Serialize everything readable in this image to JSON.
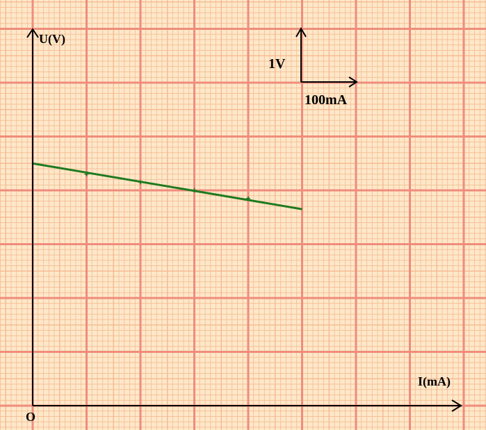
{
  "colors": {
    "paper": "#fde8c9",
    "grid_fine": "#f5b58c",
    "grid_major": "#f08c7c",
    "axis": "#000000",
    "line": "#1f7a1f"
  },
  "labels": {
    "y_axis": "U(V)",
    "x_axis": "I(mA)",
    "origin": "O",
    "scale_v": "1V",
    "scale_i": "100mA"
  },
  "chart_data": {
    "type": "scatter",
    "xlabel": "I(mA)",
    "ylabel": "U(V)",
    "xlim": [
      0,
      775
    ],
    "ylim": [
      0,
      6.9
    ],
    "scale_bar": {
      "x": "100mA",
      "y": "1V"
    },
    "grid": true,
    "points": [
      {
        "x": 100,
        "y": 4.3
      },
      {
        "x": 200,
        "y": 4.15
      },
      {
        "x": 300,
        "y": 4.0
      },
      {
        "x": 400,
        "y": 3.85
      }
    ],
    "fit_line": {
      "x": [
        0,
        500
      ],
      "y": [
        4.5,
        3.65
      ]
    }
  }
}
